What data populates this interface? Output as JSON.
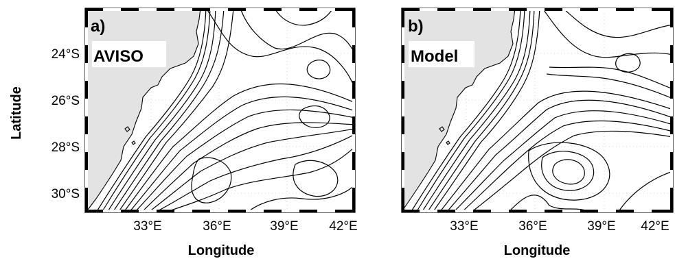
{
  "figure": {
    "y_axis_title": "Latitude",
    "x_axis_title": "Longitude",
    "panels": [
      {
        "tag": "a)",
        "name": "AVISO",
        "y_tick_labels": [
          "24°S",
          "26°S",
          "28°S",
          "30°S"
        ],
        "x_tick_labels": [
          "33°E",
          "36°E",
          "39°E",
          "42°E"
        ]
      },
      {
        "tag": "b)",
        "name": "Model",
        "y_tick_labels": [],
        "x_tick_labels": [
          "33°E",
          "36°E",
          "39°E",
          "42°E"
        ]
      }
    ]
  },
  "map": {
    "lon_range": [
      30.5,
      42.3
    ],
    "lat_range": [
      -31,
      -22
    ],
    "land_color": "#e3e3e3",
    "contour_color": "#000000",
    "grid": true
  }
}
